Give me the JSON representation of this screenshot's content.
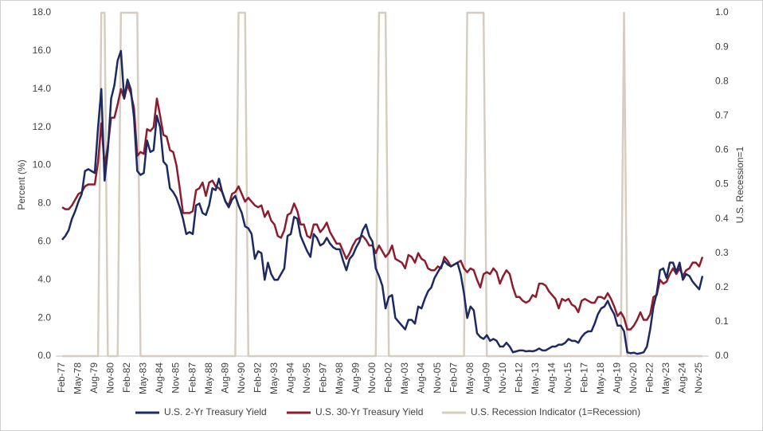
{
  "chart_data": {
    "type": "line",
    "y_label": "Percent (%)",
    "y2_label": "U.S. Recession=1",
    "categories": [
      "Feb-77",
      null,
      null,
      null,
      null,
      "May-78",
      null,
      null,
      null,
      null,
      "Aug-79",
      null,
      null,
      null,
      null,
      "Nov-80",
      null,
      null,
      null,
      null,
      "Feb-82",
      null,
      null,
      null,
      null,
      "May-83",
      null,
      null,
      null,
      null,
      "Aug-84",
      null,
      null,
      null,
      null,
      "Nov-85",
      null,
      null,
      null,
      null,
      "Feb-87",
      null,
      null,
      null,
      null,
      "May-88",
      null,
      null,
      null,
      null,
      "Aug-89",
      null,
      null,
      null,
      null,
      "Nov-90",
      null,
      null,
      null,
      null,
      "Feb-92",
      null,
      null,
      null,
      null,
      "May-93",
      null,
      null,
      null,
      null,
      "Aug-94",
      null,
      null,
      null,
      null,
      "Nov-95",
      null,
      null,
      null,
      null,
      "Feb-97",
      null,
      null,
      null,
      null,
      "May-98",
      null,
      null,
      null,
      null,
      "Aug-99",
      null,
      null,
      null,
      null,
      "Nov-00",
      null,
      null,
      null,
      null,
      "Feb-02",
      null,
      null,
      null,
      null,
      "May-03",
      null,
      null,
      null,
      null,
      "Aug-04",
      null,
      null,
      null,
      null,
      "Nov-05",
      null,
      null,
      null,
      null,
      "Feb-07",
      null,
      null,
      null,
      null,
      "May-08",
      null,
      null,
      null,
      null,
      "Aug-09",
      null,
      null,
      null,
      null,
      "Nov-10",
      null,
      null,
      null,
      null,
      "Feb-12",
      null,
      null,
      null,
      null,
      "May-13",
      null,
      null,
      null,
      null,
      "Aug-14",
      null,
      null,
      null,
      null,
      "Nov-15",
      null,
      null,
      null,
      null,
      "Feb-17",
      null,
      null,
      null,
      null,
      "May-18",
      null,
      null,
      null,
      null,
      "Aug-19",
      null,
      null,
      null,
      null,
      "Nov-20",
      null,
      null,
      null,
      null,
      "Feb-22",
      null,
      null,
      null,
      null,
      "May-23",
      null,
      null,
      null,
      null,
      "Aug-24",
      null,
      null,
      null,
      null,
      "Nov-25",
      null
    ],
    "series": [
      {
        "name": "U.S. Recession Indicator (1=Recession)",
        "color": "#d6cdc0",
        "axis": "y2",
        "values": [
          0,
          0,
          0,
          0,
          0,
          0,
          0,
          0,
          0,
          0,
          0,
          0,
          1,
          1,
          0,
          0,
          0,
          0,
          1,
          1,
          1,
          1,
          1,
          1,
          0,
          0,
          0,
          0,
          0,
          0,
          0,
          0,
          0,
          0,
          0,
          0,
          0,
          0,
          0,
          0,
          0,
          0,
          0,
          0,
          0,
          0,
          0,
          0,
          0,
          0,
          0,
          0,
          0,
          0,
          1,
          1,
          1,
          0,
          0,
          0,
          0,
          0,
          0,
          0,
          0,
          0,
          0,
          0,
          0,
          0,
          0,
          0,
          0,
          0,
          0,
          0,
          0,
          0,
          0,
          0,
          0,
          0,
          0,
          0,
          0,
          0,
          0,
          0,
          0,
          0,
          0,
          0,
          0,
          0,
          0,
          0,
          0,
          1,
          1,
          1,
          0,
          0,
          0,
          0,
          0,
          0,
          0,
          0,
          0,
          0,
          0,
          0,
          0,
          0,
          0,
          0,
          0,
          0,
          0,
          0,
          0,
          0,
          0,
          0,
          1,
          1,
          1,
          1,
          1,
          1,
          0,
          0,
          0,
          0,
          0,
          0,
          0,
          0,
          0,
          0,
          0,
          0,
          0,
          0,
          0,
          0,
          0,
          0,
          0,
          0,
          0,
          0,
          0,
          0,
          0,
          0,
          0,
          0,
          0,
          0,
          0,
          0,
          0,
          0,
          0,
          0,
          0,
          0,
          0,
          0,
          0,
          0,
          1,
          0,
          0,
          0,
          0,
          0,
          0,
          0,
          0,
          0,
          0,
          0,
          0,
          0,
          0,
          0,
          0,
          0,
          0,
          0,
          0,
          0,
          0,
          0,
          0
        ]
      },
      {
        "name": "U.S. 30-Yr Treasury Yield",
        "color": "#8c1d2e",
        "values": [
          7.8,
          7.7,
          7.7,
          7.9,
          8.2,
          8.5,
          8.6,
          8.9,
          9.0,
          9.0,
          9.0,
          10.2,
          12.2,
          10.0,
          11.0,
          12.5,
          12.5,
          13.2,
          14.0,
          13.5,
          14.2,
          13.8,
          13.0,
          10.5,
          10.7,
          10.6,
          11.9,
          11.8,
          12.0,
          13.5,
          12.6,
          11.6,
          11.5,
          10.8,
          10.7,
          10.0,
          8.8,
          7.5,
          7.5,
          7.5,
          7.6,
          8.7,
          8.8,
          9.1,
          8.4,
          9.1,
          9.2,
          8.9,
          8.8,
          8.6,
          8.1,
          7.9,
          8.5,
          8.6,
          8.9,
          8.5,
          8.1,
          8.3,
          8.1,
          7.9,
          7.8,
          7.9,
          7.3,
          7.6,
          7.1,
          6.9,
          6.3,
          6.2,
          6.6,
          7.4,
          7.5,
          8.0,
          7.6,
          6.9,
          6.9,
          6.3,
          6.2,
          6.9,
          6.9,
          6.5,
          6.7,
          7.0,
          6.5,
          6.2,
          5.9,
          5.9,
          5.5,
          5.1,
          5.4,
          5.8,
          6.1,
          6.2,
          6.3,
          6.1,
          5.8,
          5.8,
          5.4,
          5.8,
          5.5,
          5.2,
          5.4,
          5.8,
          5.1,
          5.0,
          4.9,
          4.6,
          5.3,
          5.2,
          4.9,
          5.4,
          5.1,
          5.0,
          4.6,
          4.5,
          4.5,
          4.7,
          4.6,
          5.2,
          5.0,
          4.7,
          4.8,
          4.9,
          5.0,
          4.6,
          4.4,
          4.6,
          4.5,
          4.0,
          3.6,
          4.3,
          4.4,
          4.3,
          4.6,
          4.4,
          3.8,
          4.2,
          4.5,
          4.3,
          3.6,
          3.1,
          3.1,
          2.9,
          2.8,
          2.9,
          3.2,
          3.1,
          3.8,
          3.8,
          3.7,
          3.4,
          3.2,
          3.0,
          2.5,
          3.0,
          2.9,
          3.0,
          2.7,
          2.6,
          2.3,
          2.9,
          3.0,
          2.9,
          2.8,
          2.8,
          3.1,
          3.1,
          3.0,
          3.3,
          3.0,
          2.6,
          2.1,
          2.3,
          2.0,
          1.4,
          1.4,
          1.6,
          1.9,
          2.3,
          1.9,
          1.9,
          2.2,
          3.1,
          3.2,
          4.0,
          3.8,
          3.9,
          4.3,
          4.6,
          4.3,
          4.6,
          4.2,
          4.5,
          4.6,
          4.9,
          4.9,
          4.7,
          5.2
        ]
      },
      {
        "name": "U.S. 2-Yr Treasury Yield",
        "color": "#1c2a62",
        "values": [
          6.1,
          6.3,
          6.6,
          7.2,
          7.6,
          8.1,
          8.5,
          9.7,
          9.8,
          9.7,
          9.6,
          12.0,
          14.0,
          9.2,
          10.8,
          13.5,
          14.2,
          15.5,
          16.0,
          13.5,
          14.5,
          14.0,
          12.5,
          9.7,
          9.5,
          9.6,
          11.3,
          10.7,
          10.8,
          12.6,
          12.0,
          10.2,
          10.0,
          8.8,
          8.6,
          8.3,
          7.8,
          7.2,
          6.4,
          6.5,
          6.4,
          7.9,
          8.0,
          7.5,
          7.4,
          7.9,
          8.8,
          8.7,
          9.3,
          8.6,
          8.1,
          7.8,
          8.2,
          8.4,
          7.9,
          7.5,
          6.8,
          6.7,
          6.4,
          5.1,
          5.5,
          5.4,
          4.0,
          4.9,
          4.3,
          4.0,
          4.0,
          4.3,
          4.6,
          6.3,
          6.4,
          7.3,
          7.2,
          6.3,
          5.9,
          5.5,
          5.2,
          6.4,
          6.2,
          5.8,
          5.9,
          6.2,
          5.9,
          5.7,
          5.6,
          5.6,
          5.0,
          4.5,
          5.1,
          5.3,
          5.7,
          6.0,
          6.6,
          6.9,
          6.3,
          6.0,
          4.6,
          4.2,
          3.7,
          2.5,
          3.1,
          3.2,
          2.0,
          1.8,
          1.6,
          1.4,
          1.9,
          1.9,
          1.7,
          2.6,
          2.5,
          3.0,
          3.4,
          3.6,
          4.1,
          4.4,
          4.7,
          5.0,
          4.8,
          4.7,
          4.8,
          4.9,
          4.3,
          3.3,
          2.0,
          2.6,
          2.4,
          1.2,
          1.0,
          0.9,
          1.1,
          0.8,
          0.9,
          0.8,
          0.5,
          0.5,
          0.7,
          0.5,
          0.2,
          0.25,
          0.3,
          0.3,
          0.25,
          0.27,
          0.25,
          0.3,
          0.4,
          0.3,
          0.3,
          0.4,
          0.5,
          0.5,
          0.6,
          0.6,
          0.7,
          0.9,
          0.8,
          0.8,
          0.7,
          1.0,
          1.2,
          1.3,
          1.3,
          1.7,
          2.2,
          2.5,
          2.6,
          2.9,
          2.5,
          2.2,
          1.6,
          1.6,
          1.3,
          0.2,
          0.15,
          0.18,
          0.12,
          0.15,
          0.2,
          0.5,
          1.4,
          2.6,
          3.3,
          4.5,
          4.6,
          4.1,
          4.9,
          4.9,
          4.4,
          4.9,
          4.0,
          4.3,
          4.2,
          3.9,
          3.7,
          3.5,
          4.2
        ]
      }
    ],
    "ylim": [
      0,
      18
    ],
    "yticks": [
      {
        "value": 0,
        "label": "0.0"
      },
      {
        "value": 2,
        "label": "2.0"
      },
      {
        "value": 4,
        "label": "4.0"
      },
      {
        "value": 6,
        "label": "6.0"
      },
      {
        "value": 8,
        "label": "8.0"
      },
      {
        "value": 10,
        "label": "10.0"
      },
      {
        "value": 12,
        "label": "12.0"
      },
      {
        "value": 14,
        "label": "14.0"
      },
      {
        "value": 16,
        "label": "16.0"
      },
      {
        "value": 18,
        "label": "18.0"
      }
    ],
    "y2lim": [
      0,
      1
    ],
    "y2ticks": [
      {
        "value": 0,
        "label": "0.0"
      },
      0.1,
      0.2,
      0.3,
      0.4,
      0.5,
      0.6,
      0.7,
      0.8,
      0.9,
      {
        "value": 1,
        "label": "1.0"
      }
    ],
    "legend": "bottom"
  }
}
